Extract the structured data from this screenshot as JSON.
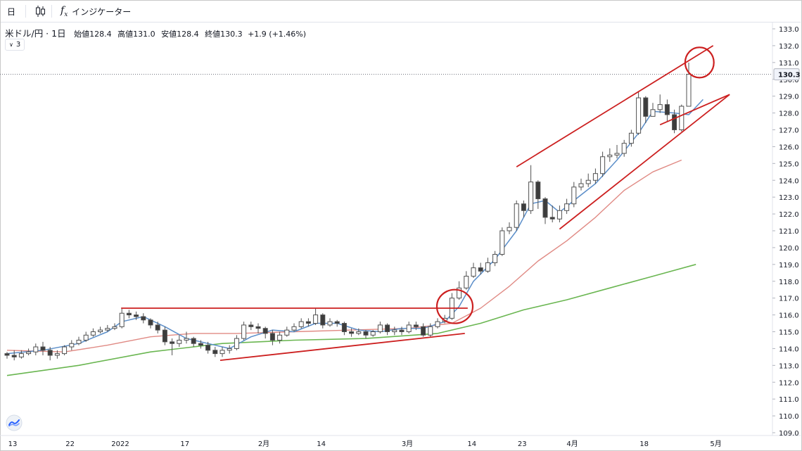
{
  "toolbar": {
    "interval_label": "日",
    "indicators_label": "インジケーター",
    "icons": [
      "candles-icon",
      "fx-icon"
    ]
  },
  "legend": {
    "symbol": "米ドル/円 · 1日",
    "open_label": "始値",
    "open": "128.4",
    "high_label": "高値",
    "high": "131.0",
    "low_label": "安値",
    "low": "128.4",
    "close_label": "終値",
    "close": "130.3",
    "change": "+1.9 (+1.46%)"
  },
  "indicator_count": "3",
  "price_tag": "130.3",
  "colors": {
    "candle_up_fill": "#ffffff",
    "candle_down_fill": "#3c3c3c",
    "candle_border": "#505050",
    "ma_short": "#5b8ec9",
    "ma_mid": "#e08a84",
    "ma_long": "#6ab651",
    "annotation": "#cc1f1f"
  },
  "chart_data": {
    "type": "candlestick",
    "title": "",
    "xlabel": "",
    "ylabel": "",
    "ylim": [
      108.5,
      133.5
    ],
    "y_ticks": [
      "109.0",
      "110.0",
      "111.0",
      "112.0",
      "113.0",
      "114.0",
      "115.0",
      "116.0",
      "117.0",
      "118.0",
      "119.0",
      "120.0",
      "121.0",
      "122.0",
      "123.0",
      "124.0",
      "125.0",
      "126.0",
      "127.0",
      "128.0",
      "129.0",
      "130.0",
      "131.0",
      "132.0",
      "133.0"
    ],
    "x_tick_labels": [
      {
        "label": "13",
        "index": 0
      },
      {
        "label": "22",
        "index": 8
      },
      {
        "label": "2022",
        "index": 15
      },
      {
        "label": "17",
        "index": 24
      },
      {
        "label": "2月",
        "index": 35
      },
      {
        "label": "14",
        "index": 43
      },
      {
        "label": "3月",
        "index": 55
      },
      {
        "label": "14",
        "index": 64
      },
      {
        "label": "23",
        "index": 71
      },
      {
        "label": "4月",
        "index": 78
      },
      {
        "label": "18",
        "index": 88
      },
      {
        "label": "5月",
        "index": 98
      }
    ],
    "last_price": 130.3,
    "candles": [
      [
        113.7,
        113.6,
        113.8,
        113.4
      ],
      [
        113.6,
        113.5,
        113.9,
        113.3
      ],
      [
        113.5,
        113.7,
        113.9,
        113.4
      ],
      [
        113.7,
        113.8,
        114.0,
        113.6
      ],
      [
        113.8,
        114.1,
        114.3,
        113.6
      ],
      [
        114.1,
        113.9,
        114.4,
        113.6
      ],
      [
        113.9,
        113.6,
        114.1,
        113.3
      ],
      [
        113.6,
        113.7,
        113.9,
        113.4
      ],
      [
        113.7,
        114.1,
        114.2,
        113.6
      ],
      [
        114.1,
        114.3,
        114.5,
        113.9
      ],
      [
        114.3,
        114.5,
        114.7,
        114.2
      ],
      [
        114.5,
        114.8,
        115.0,
        114.4
      ],
      [
        114.8,
        115.0,
        115.2,
        114.7
      ],
      [
        115.0,
        115.1,
        115.3,
        114.9
      ],
      [
        115.1,
        115.2,
        115.4,
        115.0
      ],
      [
        115.2,
        115.3,
        115.5,
        115.1
      ],
      [
        115.3,
        116.1,
        116.4,
        115.2
      ],
      [
        116.1,
        116.0,
        116.3,
        115.8
      ],
      [
        116.0,
        115.9,
        116.2,
        115.7
      ],
      [
        115.9,
        115.7,
        116.1,
        115.5
      ],
      [
        115.7,
        115.4,
        115.8,
        115.2
      ],
      [
        115.4,
        115.1,
        115.6,
        114.9
      ],
      [
        115.1,
        114.4,
        115.3,
        114.2
      ],
      [
        114.4,
        114.3,
        114.6,
        113.6
      ],
      [
        114.3,
        114.5,
        114.8,
        114.1
      ],
      [
        114.5,
        114.6,
        115.0,
        114.3
      ],
      [
        114.6,
        114.3,
        114.7,
        114.1
      ],
      [
        114.3,
        114.2,
        114.5,
        114.0
      ],
      [
        114.2,
        113.9,
        114.4,
        113.7
      ],
      [
        113.9,
        113.7,
        114.1,
        113.5
      ],
      [
        113.7,
        113.9,
        114.1,
        113.5
      ],
      [
        113.9,
        114.0,
        114.2,
        113.7
      ],
      [
        114.0,
        114.6,
        114.8,
        113.9
      ],
      [
        114.6,
        115.4,
        115.6,
        114.5
      ],
      [
        115.4,
        115.3,
        115.6,
        115.1
      ],
      [
        115.3,
        115.2,
        115.5,
        114.9
      ],
      [
        115.2,
        114.9,
        115.3,
        114.6
      ],
      [
        114.9,
        114.5,
        115.1,
        114.2
      ],
      [
        114.5,
        114.8,
        115.0,
        114.3
      ],
      [
        114.8,
        115.1,
        115.3,
        114.7
      ],
      [
        115.1,
        115.3,
        115.5,
        115.0
      ],
      [
        115.3,
        115.6,
        115.8,
        115.2
      ],
      [
        115.6,
        115.5,
        115.8,
        115.3
      ],
      [
        115.5,
        116.0,
        116.4,
        115.4
      ],
      [
        116.0,
        115.4,
        116.1,
        115.2
      ],
      [
        115.4,
        115.6,
        115.8,
        115.3
      ],
      [
        115.6,
        115.5,
        115.7,
        115.3
      ],
      [
        115.5,
        115.0,
        115.6,
        114.8
      ],
      [
        115.0,
        114.9,
        115.2,
        114.7
      ],
      [
        114.9,
        115.0,
        115.2,
        114.8
      ],
      [
        115.0,
        114.8,
        115.1,
        114.6
      ],
      [
        114.8,
        115.0,
        115.1,
        114.7
      ],
      [
        115.0,
        115.4,
        115.6,
        114.9
      ],
      [
        115.4,
        115.0,
        115.5,
        114.8
      ],
      [
        115.0,
        115.1,
        115.3,
        114.8
      ],
      [
        115.1,
        115.0,
        115.3,
        114.8
      ],
      [
        115.0,
        115.4,
        115.6,
        114.9
      ],
      [
        115.4,
        115.3,
        115.6,
        115.1
      ],
      [
        115.3,
        114.8,
        115.5,
        114.7
      ],
      [
        114.8,
        115.3,
        115.5,
        114.7
      ],
      [
        115.3,
        115.6,
        115.8,
        115.2
      ],
      [
        115.6,
        115.8,
        116.0,
        115.5
      ],
      [
        115.8,
        117.0,
        117.3,
        115.7
      ],
      [
        117.0,
        117.6,
        118.0,
        116.9
      ],
      [
        117.6,
        118.3,
        118.6,
        117.5
      ],
      [
        118.3,
        118.8,
        119.1,
        118.2
      ],
      [
        118.8,
        118.6,
        119.1,
        118.4
      ],
      [
        118.6,
        119.1,
        119.4,
        118.5
      ],
      [
        119.1,
        119.6,
        119.8,
        118.9
      ],
      [
        119.6,
        121.0,
        121.2,
        119.5
      ],
      [
        121.0,
        121.2,
        121.5,
        120.8
      ],
      [
        121.2,
        122.6,
        122.8,
        121.0
      ],
      [
        122.6,
        122.2,
        122.8,
        121.8
      ],
      [
        122.2,
        123.9,
        124.9,
        122.0
      ],
      [
        123.9,
        122.9,
        124.0,
        122.3
      ],
      [
        122.9,
        121.8,
        123.0,
        121.4
      ],
      [
        121.8,
        121.7,
        122.5,
        121.5
      ],
      [
        121.7,
        122.2,
        122.5,
        121.5
      ],
      [
        122.2,
        122.6,
        122.9,
        122.0
      ],
      [
        122.6,
        123.6,
        123.9,
        122.4
      ],
      [
        123.6,
        123.8,
        124.1,
        123.4
      ],
      [
        123.8,
        124.0,
        124.4,
        123.6
      ],
      [
        124.0,
        124.4,
        124.7,
        123.8
      ],
      [
        124.4,
        125.4,
        125.7,
        124.2
      ],
      [
        125.4,
        125.5,
        125.9,
        125.1
      ],
      [
        125.5,
        125.6,
        126.1,
        125.3
      ],
      [
        125.6,
        126.2,
        126.4,
        125.4
      ],
      [
        126.2,
        126.8,
        127.0,
        126.0
      ],
      [
        126.8,
        128.9,
        129.3,
        126.7
      ],
      [
        128.9,
        127.8,
        129.0,
        127.4
      ],
      [
        127.8,
        128.2,
        128.6,
        127.8
      ],
      [
        128.2,
        128.5,
        129.1,
        128.0
      ],
      [
        128.5,
        127.9,
        128.8,
        127.5
      ],
      [
        127.9,
        127.0,
        128.2,
        126.8
      ],
      [
        127.0,
        128.4,
        128.5,
        126.9
      ],
      [
        128.4,
        130.3,
        131.0,
        128.4
      ]
    ],
    "ma_short": [
      [
        0,
        113.7
      ],
      [
        5,
        113.9
      ],
      [
        10,
        114.3
      ],
      [
        14,
        115.0
      ],
      [
        16,
        115.6
      ],
      [
        19,
        115.9
      ],
      [
        22,
        115.3
      ],
      [
        25,
        114.6
      ],
      [
        28,
        114.3
      ],
      [
        31,
        114.0
      ],
      [
        34,
        114.7
      ],
      [
        37,
        115.1
      ],
      [
        40,
        115.0
      ],
      [
        43,
        115.5
      ],
      [
        46,
        115.5
      ],
      [
        49,
        115.1
      ],
      [
        52,
        115.0
      ],
      [
        55,
        115.2
      ],
      [
        58,
        115.2
      ],
      [
        61,
        115.6
      ],
      [
        63,
        116.5
      ],
      [
        65,
        118.0
      ],
      [
        68,
        119.3
      ],
      [
        71,
        121.0
      ],
      [
        73,
        122.6
      ],
      [
        75,
        122.8
      ],
      [
        77,
        122.1
      ],
      [
        79,
        122.8
      ],
      [
        82,
        123.8
      ],
      [
        85,
        125.2
      ],
      [
        88,
        126.8
      ],
      [
        90,
        128.1
      ],
      [
        93,
        128.0
      ],
      [
        95,
        127.9
      ],
      [
        97,
        128.8
      ]
    ],
    "ma_mid": [
      [
        0,
        113.9
      ],
      [
        8,
        113.8
      ],
      [
        14,
        114.2
      ],
      [
        20,
        114.7
      ],
      [
        26,
        114.9
      ],
      [
        32,
        114.9
      ],
      [
        40,
        115.0
      ],
      [
        48,
        115.1
      ],
      [
        56,
        115.2
      ],
      [
        62,
        115.5
      ],
      [
        66,
        116.4
      ],
      [
        70,
        117.7
      ],
      [
        74,
        119.2
      ],
      [
        78,
        120.4
      ],
      [
        82,
        121.8
      ],
      [
        86,
        123.4
      ],
      [
        90,
        124.5
      ],
      [
        94,
        125.2
      ]
    ],
    "ma_long": [
      [
        0,
        112.4
      ],
      [
        10,
        113.0
      ],
      [
        20,
        113.8
      ],
      [
        30,
        114.3
      ],
      [
        40,
        114.5
      ],
      [
        50,
        114.6
      ],
      [
        60,
        114.9
      ],
      [
        66,
        115.5
      ],
      [
        72,
        116.3
      ],
      [
        78,
        116.9
      ],
      [
        84,
        117.6
      ],
      [
        90,
        118.3
      ],
      [
        96,
        119.0
      ]
    ],
    "annotations": {
      "lines": [
        {
          "from": [
            15.9,
            116.4
          ],
          "to": [
            64.2,
            116.4
          ]
        },
        {
          "from": [
            29.7,
            113.3
          ],
          "to": [
            63.8,
            114.9
          ]
        },
        {
          "from": [
            71.0,
            124.8
          ],
          "to": [
            98.4,
            132.0
          ]
        },
        {
          "from": [
            77.0,
            121.1
          ],
          "to": [
            100.7,
            129.1
          ]
        },
        {
          "from": [
            91.0,
            127.3
          ],
          "to": [
            100.7,
            129.1
          ]
        }
      ],
      "circles": [
        {
          "center": [
            62.4,
            116.5
          ],
          "radius_x_units": 2.5,
          "radius_y_units": 1.0
        },
        {
          "center": [
            96.5,
            131.0
          ],
          "radius_x_units": 2.0,
          "radius_y_units": 0.9
        }
      ]
    }
  }
}
